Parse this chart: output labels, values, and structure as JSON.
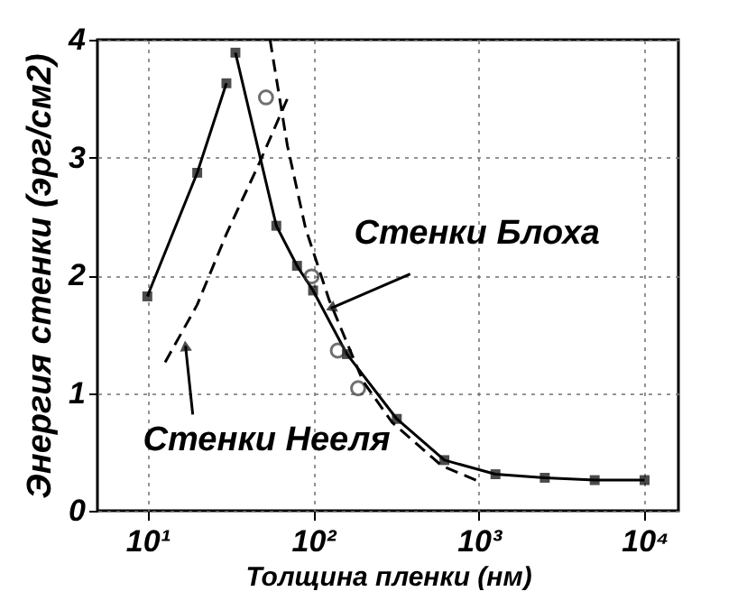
{
  "chart_data": {
    "type": "line",
    "xlabel": "Толщина пленки (нм)",
    "ylabel": "Энергия стенки (эрг/см2)",
    "log": "x",
    "xlim": [
      5,
      16000
    ],
    "ylim": [
      0,
      4
    ],
    "xticks": [
      {
        "value": 10,
        "label": "10¹"
      },
      {
        "value": 100,
        "label": "10²"
      },
      {
        "value": 1000,
        "label": "10³"
      },
      {
        "value": 10000,
        "label": "10⁴"
      }
    ],
    "yticks": [
      0,
      1,
      2,
      3,
      4
    ],
    "grid": true,
    "series": [
      {
        "type": "line",
        "color": "#000000",
        "marker": "square",
        "line_style": "solid",
        "x": [
          10,
          20,
          30
        ],
        "values": [
          1.82,
          2.87,
          3.63
        ]
      },
      {
        "type": "line",
        "color": "#000000",
        "marker": "square",
        "line_style": "solid",
        "x": [
          34,
          60,
          80,
          100,
          160,
          320,
          620,
          1260,
          2500,
          5000,
          10000
        ],
        "values": [
          3.89,
          2.42,
          2.08,
          1.87,
          1.33,
          0.78,
          0.43,
          0.31,
          0.28,
          0.26,
          0.26
        ]
      },
      {
        "type": "scatter",
        "color": "#333333",
        "marker": "circle",
        "x": [
          52,
          98,
          141,
          187
        ],
        "values": [
          3.51,
          1.99,
          1.36,
          1.04
        ]
      },
      {
        "type": "line",
        "color": "#000000",
        "marker": "none",
        "line_style": "dashed",
        "x": [
          12.8,
          20,
          30,
          48,
          70
        ],
        "values": [
          1.26,
          1.75,
          2.35,
          2.97,
          3.5
        ]
      },
      {
        "type": "line",
        "color": "#000000",
        "marker": "none",
        "line_style": "dashed",
        "x": [
          55,
          70,
          90,
          125,
          200,
          300,
          600,
          1000
        ],
        "values": [
          4.0,
          3.1,
          2.4,
          1.79,
          1.1,
          0.75,
          0.38,
          0.25
        ]
      }
    ],
    "annotations": [
      {
        "text": "Стенки Блоха",
        "x": 128,
        "y": 1.72
      },
      {
        "text": "Стенки Нееля",
        "x": 17,
        "y": 1.4
      }
    ]
  }
}
